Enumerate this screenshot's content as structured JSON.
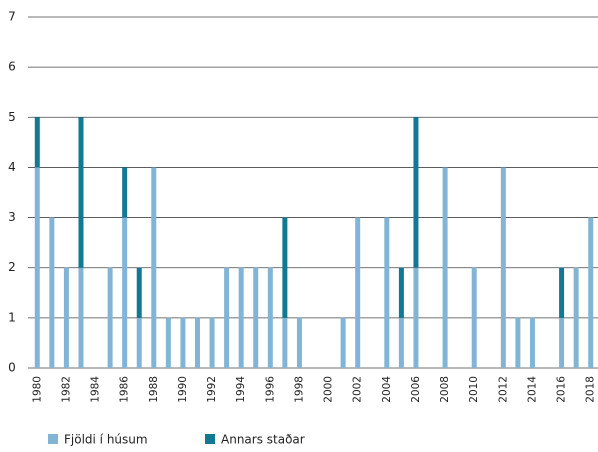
{
  "chart_data": {
    "type": "bar",
    "stacked": true,
    "categories": [
      "1980",
      null,
      "1982",
      null,
      "1984",
      null,
      "1986",
      null,
      "1988",
      null,
      "1990",
      null,
      "1992",
      null,
      "1994",
      null,
      "1996",
      null,
      "1998",
      null,
      "2000",
      null,
      "2002",
      null,
      "2004",
      null,
      "2006",
      null,
      "2008",
      null,
      "2010",
      null,
      "2012",
      null,
      "2014",
      null,
      "2016",
      null,
      "2018"
    ],
    "series": [
      {
        "name": "Fjöldi í húsum",
        "color": "#82b5d5",
        "values": [
          4,
          3,
          2,
          2,
          0,
          2,
          3,
          1,
          4,
          1,
          1,
          1,
          1,
          2,
          2,
          2,
          2,
          1,
          1,
          0,
          0,
          1,
          3,
          0,
          3,
          1,
          2,
          0,
          4,
          0,
          2,
          0,
          4,
          1,
          1,
          0,
          1,
          2,
          3
        ]
      },
      {
        "name": "Annars staðar",
        "color": "#137893",
        "values": [
          1,
          0,
          0,
          3,
          0,
          0,
          1,
          1,
          0,
          0,
          0,
          0,
          0,
          0,
          0,
          0,
          0,
          2,
          0,
          0,
          0,
          0,
          0,
          0,
          0,
          1,
          3,
          0,
          0,
          0,
          0,
          0,
          0,
          0,
          0,
          0,
          1,
          0,
          0
        ]
      }
    ],
    "ylim": [
      0,
      7
    ],
    "yticks": [
      0,
      1,
      2,
      3,
      4,
      5,
      6,
      7
    ],
    "grid": true,
    "legend": "bottom"
  }
}
